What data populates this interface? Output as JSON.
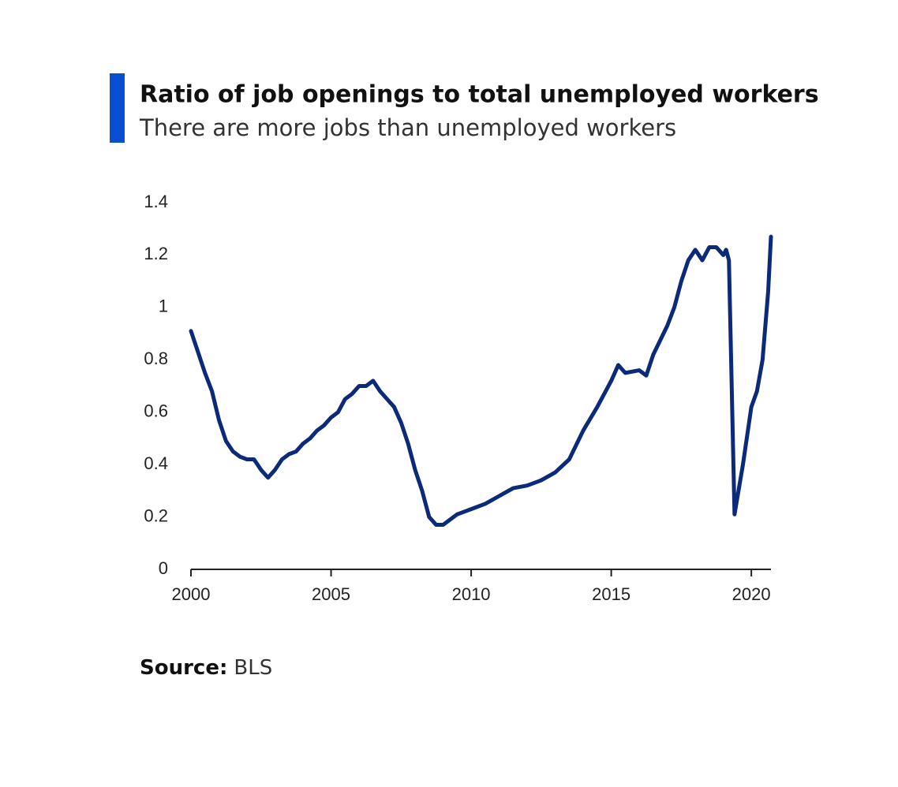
{
  "chart_data": {
    "type": "line",
    "title": "Ratio of job openings to total unemployed workers",
    "subtitle": "There are more jobs than unemployed workers",
    "source_label": "Source:",
    "source": "BLS",
    "x": [
      2000.0,
      2000.25,
      2000.5,
      2000.75,
      2001.0,
      2001.25,
      2001.5,
      2001.75,
      2002.0,
      2002.25,
      2002.5,
      2002.75,
      2003.0,
      2003.25,
      2003.5,
      2003.75,
      2004.0,
      2004.25,
      2004.5,
      2004.75,
      2005.0,
      2005.25,
      2005.5,
      2005.75,
      2006.0,
      2006.25,
      2006.5,
      2006.75,
      2007.0,
      2007.25,
      2007.5,
      2007.75,
      2008.0,
      2008.25,
      2008.5,
      2008.75,
      2009.0,
      2009.25,
      2009.5,
      2009.75,
      2010.0,
      2010.5,
      2011.0,
      2011.5,
      2012.0,
      2012.5,
      2013.0,
      2013.5,
      2014.0,
      2014.5,
      2015.0,
      2015.25,
      2015.5,
      2016.0,
      2016.25,
      2016.5,
      2017.0,
      2017.25,
      2017.5,
      2017.75,
      2018.0,
      2018.25,
      2018.5,
      2018.75,
      2019.0,
      2019.1,
      2019.2,
      2019.4,
      2019.7,
      2020.0,
      2020.2,
      2020.4,
      2020.6,
      2020.7
    ],
    "series": [
      {
        "color": "#0b2a7a",
        "values": [
          0.91,
          0.83,
          0.75,
          0.68,
          0.57,
          0.49,
          0.45,
          0.43,
          0.42,
          0.42,
          0.38,
          0.35,
          0.38,
          0.42,
          0.44,
          0.45,
          0.48,
          0.5,
          0.53,
          0.55,
          0.58,
          0.6,
          0.65,
          0.67,
          0.7,
          0.7,
          0.72,
          0.68,
          0.65,
          0.62,
          0.56,
          0.48,
          0.38,
          0.3,
          0.2,
          0.17,
          0.17,
          0.19,
          0.21,
          0.22,
          0.23,
          0.25,
          0.28,
          0.31,
          0.32,
          0.34,
          0.37,
          0.42,
          0.53,
          0.62,
          0.72,
          0.78,
          0.75,
          0.76,
          0.74,
          0.82,
          0.93,
          1.0,
          1.1,
          1.18,
          1.22,
          1.18,
          1.23,
          1.23,
          1.2,
          1.22,
          1.18,
          0.21,
          0.4,
          0.62,
          0.68,
          0.8,
          1.06,
          1.27
        ]
      }
    ],
    "xlim": [
      2000,
      2020.7
    ],
    "xticks": [
      2000,
      2005,
      2010,
      2015,
      2020
    ],
    "ylim": [
      0,
      1.4
    ],
    "yticks": [
      0,
      0.2,
      0.4,
      0.6,
      0.8,
      1,
      1.2,
      1.4
    ],
    "grid": false,
    "accent_color": "#0a4fd1"
  }
}
